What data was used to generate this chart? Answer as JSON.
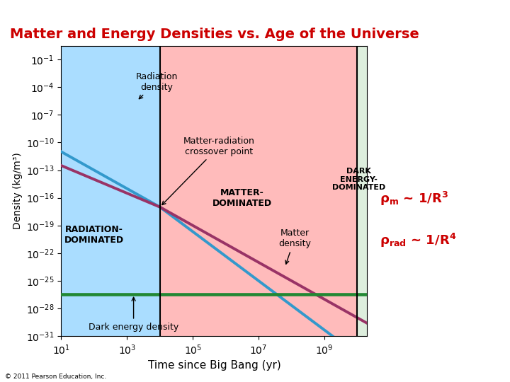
{
  "title": "Matter and Energy Densities vs. Age of the Universe",
  "title_color": "#cc0000",
  "xlabel": "Time since Big Bang (yr)",
  "ylabel": "Density (kg/m³)",
  "xlim": [
    10.0,
    20000000000.0
  ],
  "ylim": [
    1e-31,
    3.0
  ],
  "bg_color": "#ffffff",
  "region1_color": "#aaddff",
  "region2_color": "#ffbbbb",
  "region3_color": "#ddeedd",
  "x_boundary1": 10000.0,
  "x_boundary2": 10000000000.0,
  "radiation_color": "#3399cc",
  "matter_color": "#993366",
  "dark_energy_color": "#228833",
  "dark_energy_level": 3.5e-27,
  "t_cross": 10000.0,
  "rho_cross": 1e-17,
  "annotation_color": "#cc0000",
  "copyright": "© 2011 Pearson Education, Inc."
}
